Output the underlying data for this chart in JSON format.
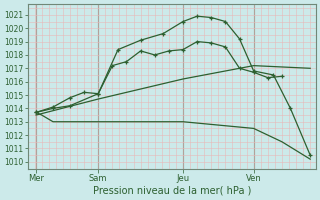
{
  "xlabel": "Pression niveau de la mer( hPa )",
  "bg_color": "#cceaea",
  "grid_minor_color": "#e8b8b8",
  "grid_major_color": "#c8a0a0",
  "line_color": "#2d6030",
  "spine_color": "#708878",
  "ylim": [
    1009.5,
    1021.8
  ],
  "yticks": [
    1010,
    1011,
    1012,
    1013,
    1014,
    1015,
    1016,
    1017,
    1018,
    1019,
    1020,
    1021
  ],
  "xlim": [
    0,
    10.2
  ],
  "xtick_labels": [
    "Mer",
    "Sam",
    "Jeu",
    "Ven"
  ],
  "xtick_positions": [
    0.3,
    2.5,
    5.5,
    8.0
  ],
  "vline_positions": [
    0.3,
    2.5,
    5.5,
    8.0
  ],
  "lines": [
    {
      "x": [
        0.3,
        0.9,
        1.5,
        2.5,
        3.2,
        4.0,
        4.8,
        5.5,
        6.0,
        6.5,
        7.0,
        7.5,
        8.0,
        8.7,
        9.3,
        10.0
      ],
      "y": [
        1013.7,
        1014.0,
        1014.2,
        1015.1,
        1018.4,
        1019.1,
        1019.6,
        1020.5,
        1020.9,
        1020.8,
        1020.5,
        1019.2,
        1016.8,
        1016.5,
        1014.0,
        1010.5
      ],
      "marker": true
    },
    {
      "x": [
        0.3,
        0.9,
        1.5,
        2.0,
        2.5,
        3.0,
        3.5,
        4.0,
        4.5,
        5.0,
        5.5,
        6.0,
        6.5,
        7.0,
        7.5,
        8.0,
        8.5,
        9.0
      ],
      "y": [
        1013.7,
        1014.1,
        1014.8,
        1015.2,
        1015.1,
        1017.2,
        1017.5,
        1018.3,
        1018.0,
        1018.3,
        1018.4,
        1019.0,
        1018.9,
        1018.6,
        1017.0,
        1016.7,
        1016.3,
        1016.4
      ],
      "marker": true
    },
    {
      "x": [
        0.3,
        2.5,
        5.5,
        8.0,
        10.0
      ],
      "y": [
        1013.5,
        1014.7,
        1016.2,
        1017.2,
        1017.0
      ],
      "marker": false
    },
    {
      "x": [
        0.3,
        0.5,
        0.9,
        2.5,
        5.5,
        8.0,
        9.0,
        10.0
      ],
      "y": [
        1013.7,
        1013.5,
        1013.0,
        1013.0,
        1013.0,
        1012.5,
        1011.5,
        1010.2
      ],
      "marker": false
    }
  ]
}
